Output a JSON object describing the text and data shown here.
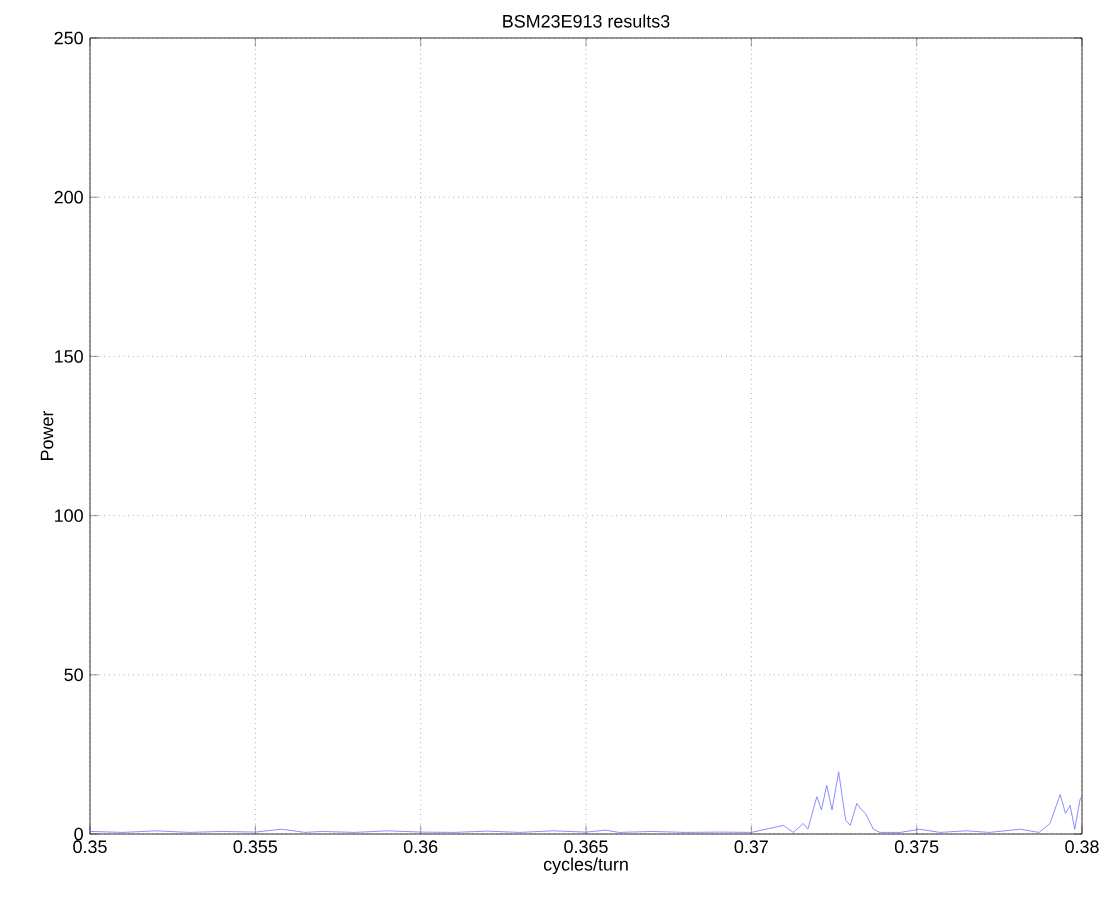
{
  "chart_data": {
    "type": "line",
    "title": "BSM23E913 results3",
    "xlabel": "cycles/turn",
    "ylabel": "Power",
    "xlim": [
      0.35,
      0.38
    ],
    "ylim": [
      0,
      250
    ],
    "xticks": [
      0.35,
      0.355,
      0.36,
      0.365,
      0.37,
      0.375,
      0.38
    ],
    "yticks": [
      0,
      50,
      100,
      150,
      200,
      250
    ],
    "grid": true,
    "series": [
      {
        "color": "#7070ff",
        "x": [
          0.35,
          0.351,
          0.352,
          0.353,
          0.354,
          0.355,
          0.3558,
          0.3565,
          0.357,
          0.358,
          0.359,
          0.36,
          0.361,
          0.362,
          0.363,
          0.364,
          0.365,
          0.3656,
          0.366,
          0.367,
          0.368,
          0.369,
          0.37,
          0.37097,
          0.37127,
          0.37157,
          0.37171,
          0.37198,
          0.37212,
          0.37228,
          0.37244,
          0.37264,
          0.37285,
          0.37299,
          0.37319,
          0.37333,
          0.37345,
          0.37369,
          0.37389,
          0.3745,
          0.3751,
          0.3757,
          0.3765,
          0.3772,
          0.37813,
          0.3787,
          0.37903,
          0.37934,
          0.3795,
          0.37964,
          0.37978,
          0.37994,
          0.38
        ],
        "values": [
          0.8,
          0.5,
          1,
          0.5,
          0.8,
          0.6,
          1.5,
          0.5,
          0.8,
          0.5,
          1,
          0.6,
          0.5,
          0.9,
          0.5,
          1,
          0.6,
          1.2,
          0.5,
          0.8,
          0.5,
          0.6,
          0.5,
          2.7,
          0.5,
          3.3,
          1.5,
          11.7,
          7.6,
          15.3,
          7.6,
          19.5,
          4.4,
          2.7,
          9.6,
          7.6,
          6.5,
          1.5,
          0.5,
          0.5,
          1.5,
          0.5,
          1,
          0.5,
          1.5,
          0.5,
          3.3,
          12.4,
          6.5,
          9,
          1.5,
          10.8,
          12
        ]
      }
    ]
  }
}
